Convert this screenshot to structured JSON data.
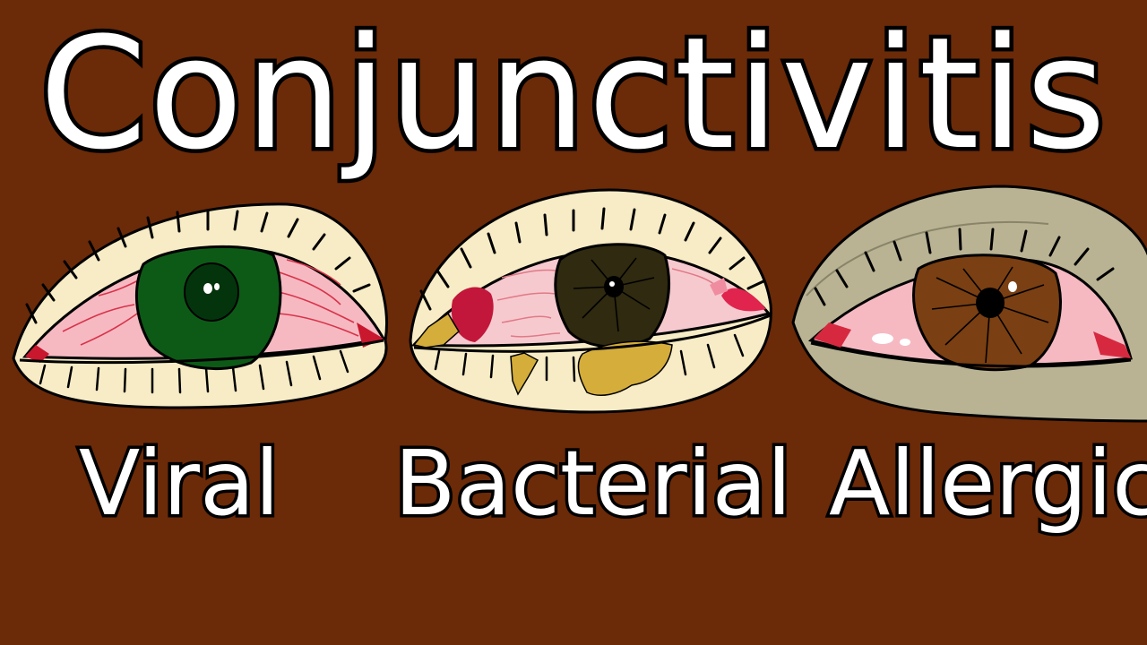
{
  "title": "Conjunctivitis",
  "eyes": [
    {
      "label": "Viral"
    },
    {
      "label": "Bacterial"
    },
    {
      "label": "Allergic"
    }
  ],
  "colors": {
    "background": "#6b2a08",
    "lid_cream": "#f7ecc6",
    "lid_allergic": "#b9b394",
    "sclera_pink": "#f6b9c2",
    "iris_green": "#0d5a17",
    "iris_dark": "#2f2a10",
    "iris_brown": "#7a3f12",
    "pus_yellow": "#d4ad3a",
    "redness": "#c9172e"
  }
}
